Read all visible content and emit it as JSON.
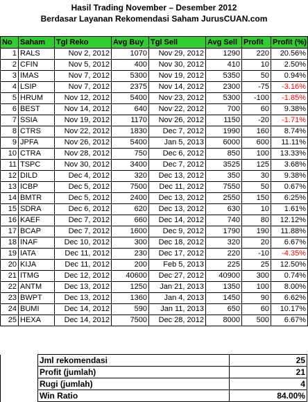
{
  "title": "Hasil Trading November – Desember 2012",
  "subtitle": "Berdasar Layanan Rekomendasi Saham JurusCUAN.com",
  "headers": [
    "No",
    "Saham",
    "Tgl Reko",
    "Avg Buy",
    "Tgl Sell",
    "Avg Sell",
    "Profit",
    "Profit (%)"
  ],
  "rows": [
    [
      "1",
      "RALS",
      "Nov 2, 2012",
      "1070",
      "Nov 29, 2012",
      "1290",
      "220",
      "20.56%"
    ],
    [
      "2",
      "CFIN",
      "Nov 5, 2012",
      "400",
      "Nov 30, 2012",
      "410",
      "10",
      "2.50%"
    ],
    [
      "3",
      "IMAS",
      "Nov 7, 2012",
      "5300",
      "Nov 19, 2012",
      "5350",
      "50",
      "0.94%"
    ],
    [
      "4",
      "LSIP",
      "Nov 7, 2012",
      "2375",
      "Nov 14, 2012",
      "2300",
      "-75",
      "-3.16%"
    ],
    [
      "5",
      "HRUM",
      "Nov 12, 2012",
      "5400",
      "Nov 23, 2012",
      "5300",
      "-100",
      "-1.85%"
    ],
    [
      "6",
      "BEST",
      "Nov 14, 2012",
      "640",
      "Nov 22, 2012",
      "700",
      "60",
      "9.38%"
    ],
    [
      "7",
      "SSIA",
      "Nov 19, 2012",
      "1170",
      "Nov 26, 2012",
      "1150",
      "-20",
      "-1.71%"
    ],
    [
      "8",
      "CTRS",
      "Nov 22, 2012",
      "1830",
      "Dec 7, 2012",
      "1990",
      "160",
      "8.74%"
    ],
    [
      "9",
      "JPFA",
      "Nov 26, 2012",
      "5400",
      "Jan 5, 2013",
      "6000",
      "600",
      "11.11%"
    ],
    [
      "10",
      "CTRA",
      "Nov 28, 2012",
      "750",
      "Dec 6, 2012",
      "850",
      "100",
      "13.33%"
    ],
    [
      "11",
      "TSPC",
      "Nov 30, 2012",
      "3400",
      "Dec 7, 2012",
      "3525",
      "125",
      "3.68%"
    ],
    [
      "12",
      "DILD",
      "Dec 4, 2012",
      "320",
      "Dec 13, 2012",
      "350",
      "30",
      "9.38%"
    ],
    [
      "13",
      "ICBP",
      "Dec 5, 2012",
      "7500",
      "Dec 11, 2012",
      "7550",
      "50",
      "0.67%"
    ],
    [
      "14",
      "BMTR",
      "Dec 5, 2012",
      "2400",
      "Dec 13, 2012",
      "2550",
      "150",
      "6.25%"
    ],
    [
      "15",
      "SDRA",
      "Dec 6, 2012",
      "620",
      "Dec 13, 2012",
      "630",
      "10",
      "1.61%"
    ],
    [
      "16",
      "KAEF",
      "Dec 7, 2012",
      "660",
      "Dec 14, 2012",
      "740",
      "80",
      "12.12%"
    ],
    [
      "17",
      "BCAP",
      "Dec 7, 2012",
      "1600",
      "Dec 9, 2012",
      "1790",
      "190",
      "11.88%"
    ],
    [
      "18",
      "INAF",
      "Dec 10, 2012",
      "300",
      "Dec 18, 2012",
      "320",
      "20",
      "6.67%"
    ],
    [
      "19",
      "IATA",
      "Dec 11, 2012",
      "230",
      "Dec 17, 2012",
      "220",
      "-10",
      "-4.35%"
    ],
    [
      "20",
      "KIJA",
      "Dec 11, 2012",
      "200",
      "Feb 5, 2013",
      "225",
      "25",
      "12.50%"
    ],
    [
      "21",
      "ITMG",
      "Dec 12, 2012",
      "40600",
      "Dec 27, 2012",
      "40900",
      "300",
      "0.74%"
    ],
    [
      "22",
      "ANTM",
      "Dec 13, 2012",
      "1250",
      "Jan 21, 2013",
      "1350",
      "100",
      "8.00%"
    ],
    [
      "23",
      "BWPT",
      "Dec 13, 2012",
      "1360",
      "Jan 4, 2013",
      "1450",
      "90",
      "6.62%"
    ],
    [
      "24",
      "BUMI",
      "Dec 14, 2012",
      "590",
      "Jan 11, 2013",
      "650",
      "60",
      "10.17%"
    ],
    [
      "25",
      "HEXA",
      "Dec 14, 2012",
      "7500",
      "Dec 28, 2012",
      "8000",
      "500",
      "6.67%"
    ]
  ],
  "summary": [
    {
      "label": "Jml rekomendasi",
      "value": "25"
    },
    {
      "label": "Profit (jumlah)",
      "value": "21"
    },
    {
      "label": "Rugi (jumlah)",
      "value": "4"
    },
    {
      "label": "Win Ratio",
      "value": "84.00%"
    }
  ],
  "colors": {
    "header_bg": "#33cc33",
    "negative": "#ff0000"
  }
}
